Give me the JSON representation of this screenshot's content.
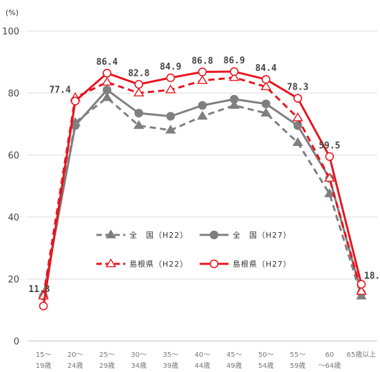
{
  "chart_data": {
    "type": "line",
    "unit_label": "(%)",
    "ylim": [
      0,
      100
    ],
    "yticks": [
      0,
      20,
      40,
      60,
      80,
      100
    ],
    "grid": true,
    "categories": [
      [
        "15～",
        "19歳"
      ],
      [
        "20～",
        "24歳"
      ],
      [
        "25～",
        "29歳"
      ],
      [
        "30～",
        "34歳"
      ],
      [
        "35～",
        "39歳"
      ],
      [
        "40～",
        "44歳"
      ],
      [
        "45～",
        "49歳"
      ],
      [
        "50～",
        "54歳"
      ],
      [
        "55～",
        "59歳"
      ],
      [
        "60",
        "～64歳"
      ],
      [
        "65歳以上",
        ""
      ]
    ],
    "series": [
      {
        "name": "全　国（H22）",
        "color": "#7f7f7f",
        "dash": true,
        "marker": "triangle",
        "values": [
          15.0,
          70.5,
          78.5,
          69.5,
          68.0,
          72.5,
          76.0,
          73.5,
          64.0,
          47.5,
          14.5
        ]
      },
      {
        "name": "全　国（H27）",
        "color": "#7f7f7f",
        "dash": false,
        "marker": "circle",
        "values": [
          14.5,
          69.5,
          81.0,
          73.5,
          72.5,
          76.0,
          78.0,
          76.5,
          69.5,
          52.5,
          15.5
        ]
      },
      {
        "name": "島根県（H22）",
        "color": "#e8141e",
        "dash": true,
        "marker": "open-triangle",
        "values": [
          14.5,
          78.5,
          83.5,
          80.0,
          81.0,
          84.0,
          85.0,
          82.0,
          72.0,
          52.5,
          16.0
        ]
      },
      {
        "name": "島根県（H27）",
        "color": "#e8141e",
        "dash": false,
        "marker": "open-circle",
        "values": [
          11.3,
          77.4,
          86.4,
          82.8,
          84.9,
          86.8,
          86.9,
          84.4,
          78.3,
          59.5,
          18.3
        ]
      }
    ],
    "data_labels": [
      "11.3",
      "77.4",
      "86.4",
      "82.8",
      "84.9",
      "86.8",
      "86.9",
      "84.4",
      "78.3",
      "59.5",
      "18.3"
    ],
    "legend": {
      "placement": "center"
    }
  }
}
